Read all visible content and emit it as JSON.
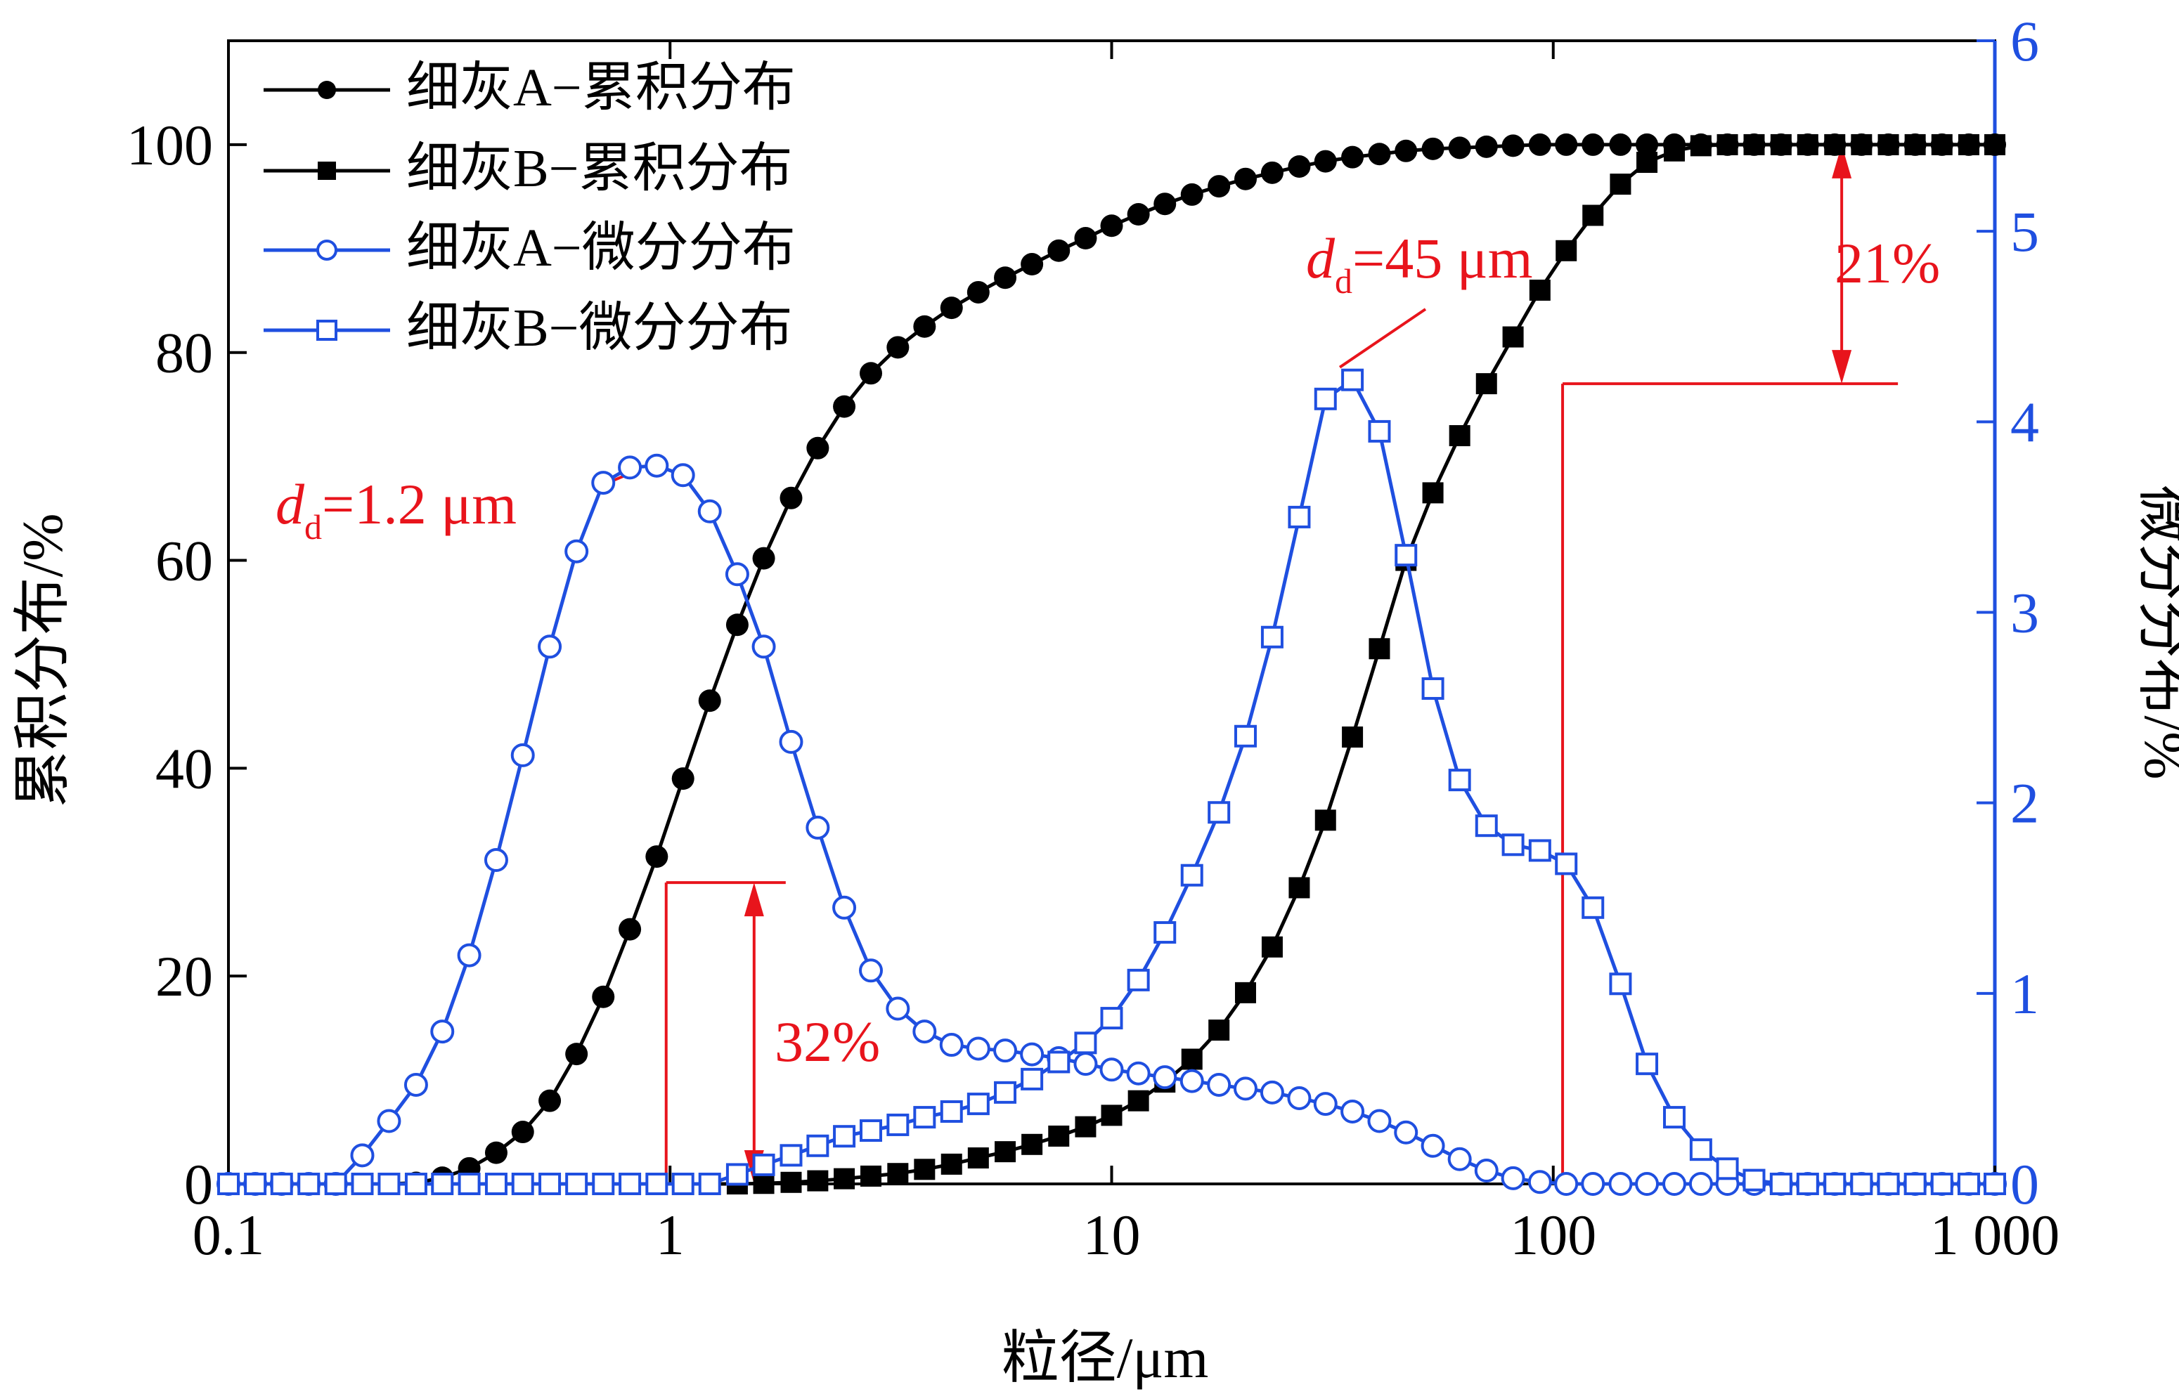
{
  "chart_data": {
    "type": "line",
    "xscale": "log",
    "xlim": [
      0.1,
      1000
    ],
    "xticks": [
      0.1,
      1,
      10,
      100,
      1000
    ],
    "xtick_labels": [
      "0.1",
      "1",
      "10",
      "100",
      "1 000"
    ],
    "xlabel": "粒径/μm",
    "ylabel_left": "累积分布/%",
    "ylim_left": [
      0,
      110
    ],
    "yticks_left": [
      0,
      20,
      40,
      60,
      80,
      100
    ],
    "ytick_labels_left": [
      "0",
      "20",
      "40",
      "60",
      "80",
      "100"
    ],
    "ylabel_right": "微分分布/%",
    "ylim_right": [
      0,
      6
    ],
    "yticks_right": [
      0,
      1,
      2,
      3,
      4,
      5,
      6
    ],
    "ytick_labels_right": [
      "0",
      "1",
      "2",
      "3",
      "4",
      "5",
      "6"
    ],
    "legend_position": "top-left",
    "colors": {
      "cumulative": "#000000",
      "differential": "#1f4fe0",
      "annotation": "#e8141c"
    },
    "series": [
      {
        "name": "细灰A−累积分布",
        "axis": "left",
        "marker": "circle-filled",
        "x": [
          0.1,
          0.115,
          0.132,
          0.152,
          0.175,
          0.201,
          0.231,
          0.266,
          0.305,
          0.351,
          0.404,
          0.464,
          0.534,
          0.614,
          0.706,
          0.811,
          0.933,
          1.07,
          1.23,
          1.42,
          1.63,
          1.88,
          2.16,
          2.48,
          2.85,
          3.28,
          3.77,
          4.34,
          4.99,
          5.74,
          6.6,
          7.59,
          8.73,
          10.0,
          11.5,
          13.2,
          15.2,
          17.5,
          20.1,
          23.1,
          26.6,
          30.5,
          35.1,
          40.4,
          46.4,
          53.4,
          61.4,
          70.6,
          81.1,
          93.3,
          107,
          123,
          142,
          163,
          188,
          216,
          248,
          285,
          328,
          377,
          434,
          499,
          574,
          660,
          759,
          873,
          1000
        ],
        "y": [
          0,
          0,
          0,
          0,
          0,
          0,
          0,
          0.1,
          0.6,
          1.5,
          3.0,
          5.0,
          8.0,
          12.5,
          18.0,
          24.5,
          31.5,
          39.0,
          46.5,
          53.8,
          60.2,
          66.0,
          70.8,
          74.8,
          78.0,
          80.5,
          82.5,
          84.3,
          85.8,
          87.2,
          88.5,
          89.8,
          91.0,
          92.2,
          93.3,
          94.3,
          95.2,
          96.0,
          96.7,
          97.3,
          97.9,
          98.4,
          98.8,
          99.1,
          99.4,
          99.6,
          99.7,
          99.8,
          99.9,
          100,
          100,
          100,
          100,
          100,
          100,
          100,
          100,
          100,
          100,
          100,
          100,
          100,
          100,
          100,
          100,
          100,
          100
        ]
      },
      {
        "name": "细灰B−累积分布",
        "axis": "left",
        "marker": "square-filled",
        "x": [
          0.1,
          0.115,
          0.132,
          0.152,
          0.175,
          0.201,
          0.231,
          0.266,
          0.305,
          0.351,
          0.404,
          0.464,
          0.534,
          0.614,
          0.706,
          0.811,
          0.933,
          1.07,
          1.23,
          1.42,
          1.63,
          1.88,
          2.16,
          2.48,
          2.85,
          3.28,
          3.77,
          4.34,
          4.99,
          5.74,
          6.6,
          7.59,
          8.73,
          10.0,
          11.5,
          13.2,
          15.2,
          17.5,
          20.1,
          23.1,
          26.6,
          30.5,
          35.1,
          40.4,
          46.4,
          53.4,
          61.4,
          70.6,
          81.1,
          93.3,
          107,
          123,
          142,
          163,
          188,
          216,
          248,
          285,
          328,
          377,
          434,
          499,
          574,
          660,
          759,
          873,
          1000
        ],
        "y": [
          0,
          0,
          0,
          0,
          0,
          0,
          0,
          0,
          0,
          0,
          0,
          0,
          0,
          0,
          0,
          0,
          0,
          0,
          0,
          0,
          0.05,
          0.15,
          0.3,
          0.5,
          0.75,
          1.0,
          1.4,
          1.9,
          2.5,
          3.1,
          3.8,
          4.6,
          5.5,
          6.6,
          8.0,
          9.8,
          12.0,
          14.8,
          18.4,
          22.8,
          28.5,
          35.0,
          43.0,
          51.5,
          60.0,
          66.5,
          72.0,
          77.0,
          81.5,
          86.0,
          89.8,
          93.2,
          96.2,
          98.3,
          99.4,
          99.9,
          100,
          100,
          100,
          100,
          100,
          100,
          100,
          100,
          100,
          100,
          100
        ]
      },
      {
        "name": "细灰A−微分分布",
        "axis": "right",
        "marker": "circle-open",
        "x": [
          0.1,
          0.115,
          0.132,
          0.152,
          0.175,
          0.201,
          0.231,
          0.266,
          0.305,
          0.351,
          0.404,
          0.464,
          0.534,
          0.614,
          0.706,
          0.811,
          0.933,
          1.07,
          1.23,
          1.42,
          1.63,
          1.88,
          2.16,
          2.48,
          2.85,
          3.28,
          3.77,
          4.34,
          4.99,
          5.74,
          6.6,
          7.59,
          8.73,
          10.0,
          11.5,
          13.2,
          15.2,
          17.5,
          20.1,
          23.1,
          26.6,
          30.5,
          35.1,
          40.4,
          46.4,
          53.4,
          61.4,
          70.6,
          81.1,
          93.3,
          107,
          123,
          142,
          163,
          188,
          216,
          248,
          285,
          328,
          377,
          434,
          499,
          574,
          660,
          759,
          873,
          1000
        ],
        "y": [
          0,
          0,
          0,
          0,
          0,
          0.15,
          0.33,
          0.52,
          0.8,
          1.2,
          1.7,
          2.25,
          2.82,
          3.32,
          3.68,
          3.76,
          3.77,
          3.72,
          3.53,
          3.2,
          2.82,
          2.32,
          1.87,
          1.45,
          1.12,
          0.92,
          0.8,
          0.73,
          0.71,
          0.7,
          0.68,
          0.66,
          0.63,
          0.6,
          0.58,
          0.56,
          0.54,
          0.52,
          0.5,
          0.48,
          0.45,
          0.42,
          0.38,
          0.33,
          0.27,
          0.2,
          0.13,
          0.07,
          0.03,
          0.01,
          0,
          0,
          0,
          0,
          0,
          0,
          0,
          0,
          0,
          0,
          0,
          0,
          0,
          0,
          0,
          0,
          0
        ]
      },
      {
        "name": "细灰B−微分分布",
        "axis": "right",
        "marker": "square-open",
        "x": [
          0.1,
          0.115,
          0.132,
          0.152,
          0.175,
          0.201,
          0.231,
          0.266,
          0.305,
          0.351,
          0.404,
          0.464,
          0.534,
          0.614,
          0.706,
          0.811,
          0.933,
          1.07,
          1.23,
          1.42,
          1.63,
          1.88,
          2.16,
          2.48,
          2.85,
          3.28,
          3.77,
          4.34,
          4.99,
          5.74,
          6.6,
          7.59,
          8.73,
          10.0,
          11.5,
          13.2,
          15.2,
          17.5,
          20.1,
          23.1,
          26.6,
          30.5,
          35.1,
          40.4,
          46.4,
          53.4,
          61.4,
          70.6,
          81.1,
          93.3,
          107,
          123,
          142,
          163,
          188,
          216,
          248,
          285,
          328,
          377,
          434,
          499,
          574,
          660,
          759,
          873,
          1000
        ],
        "y": [
          0,
          0,
          0,
          0,
          0,
          0,
          0,
          0,
          0,
          0,
          0,
          0,
          0,
          0,
          0,
          0,
          0,
          0,
          0,
          0.05,
          0.1,
          0.15,
          0.2,
          0.25,
          0.28,
          0.31,
          0.35,
          0.38,
          0.42,
          0.48,
          0.55,
          0.64,
          0.74,
          0.87,
          1.07,
          1.32,
          1.62,
          1.95,
          2.35,
          2.87,
          3.5,
          4.12,
          4.22,
          3.95,
          3.3,
          2.6,
          2.12,
          1.88,
          1.78,
          1.75,
          1.68,
          1.45,
          1.05,
          0.63,
          0.35,
          0.18,
          0.08,
          0.02,
          0,
          0,
          0,
          0,
          0,
          0,
          0,
          0,
          0
        ]
      }
    ],
    "annotations": {
      "dd_left": {
        "prefix": "d",
        "sub": "d",
        "value": "=1.2 μm"
      },
      "dd_right": {
        "prefix": "d",
        "sub": "d",
        "value": "=45 μm"
      },
      "pct_left": "32%",
      "pct_right": "21%",
      "left_bracket": {
        "x": 0.98,
        "y_top": 29,
        "arrow_x": 1.55
      },
      "right_bracket": {
        "x": 105,
        "y_top": 77,
        "y_upper": 100,
        "arrow_x": 450
      }
    }
  }
}
